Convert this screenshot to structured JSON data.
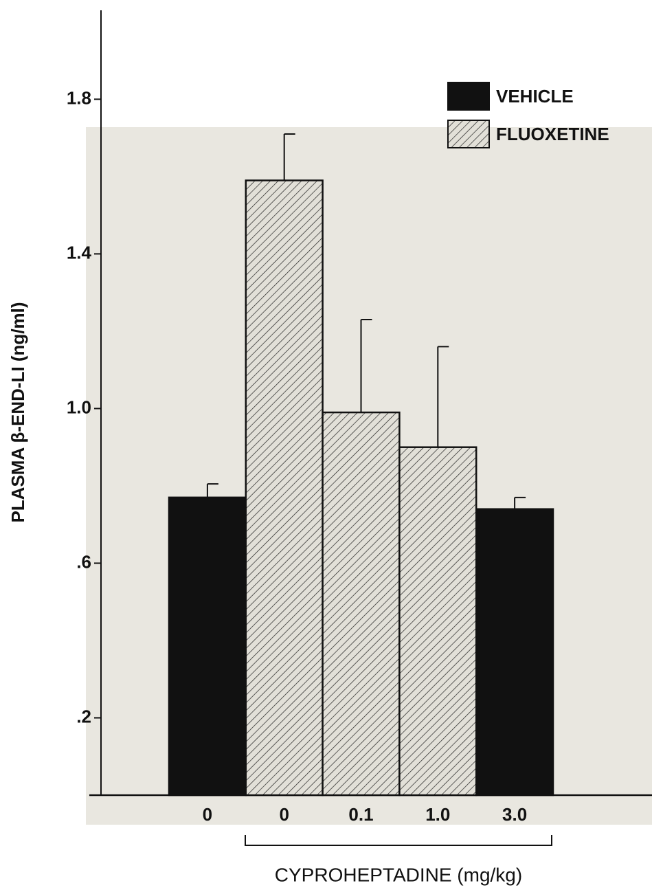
{
  "chart_data": {
    "type": "bar",
    "y_label": "PLASMA β-END-LI (ng/ml)",
    "x_label": "CYPROHEPTADINE (mg/kg)",
    "categories": [
      "0",
      "0",
      "0.1",
      "1.0",
      "3.0"
    ],
    "series": [
      {
        "name": "VEHICLE",
        "color": "#111111",
        "pattern": "solid",
        "values": [
          0.77,
          null,
          null,
          null,
          0.74
        ],
        "errors": [
          0.035,
          null,
          null,
          null,
          0.03
        ]
      },
      {
        "name": "FLUOXETINE",
        "color": "#e2e0d8",
        "pattern": "hatch",
        "values": [
          null,
          1.59,
          0.99,
          0.9,
          null
        ],
        "errors": [
          null,
          0.12,
          0.24,
          0.26,
          null
        ]
      }
    ],
    "ylim": [
      0,
      2.03
    ],
    "yticks": [
      1.8,
      1.4,
      {
        "value": 1.0,
        "label": "1.0"
      },
      {
        "value": 0.6,
        "label": ".6"
      },
      {
        "value": 0.2,
        "label": ".2"
      }
    ],
    "grid": false
  }
}
